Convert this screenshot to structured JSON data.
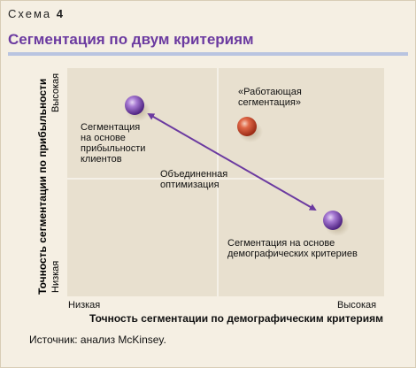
{
  "header": {
    "scheme_label": "Схема",
    "scheme_number": "4",
    "title": "Сегментация по двум критериям"
  },
  "axes": {
    "x_title": "Точность сегментации по демографическим критериям",
    "x_low": "Низкая",
    "x_high": "Высокая",
    "y_title": "Точность сегментации по прибыльности",
    "y_low": "Низкая",
    "y_high": "Высокая"
  },
  "labels": {
    "customer_profit": [
      "Сегментация",
      "на основе",
      "прибыльности",
      "клиентов"
    ],
    "working": [
      "«Работающая",
      "сегментация»"
    ],
    "combined": [
      "Объединенная",
      "оптимизация"
    ],
    "demographic": [
      "Сегментация на основе",
      "демографических критериев"
    ]
  },
  "source": "Источник: анализ McKinsey.",
  "colors": {
    "purple": "#6b3aa0",
    "red": "#c8432a",
    "background": "#f5efe3",
    "plot_background": "#e8e0cf",
    "rule": "#b9c4e0"
  }
}
